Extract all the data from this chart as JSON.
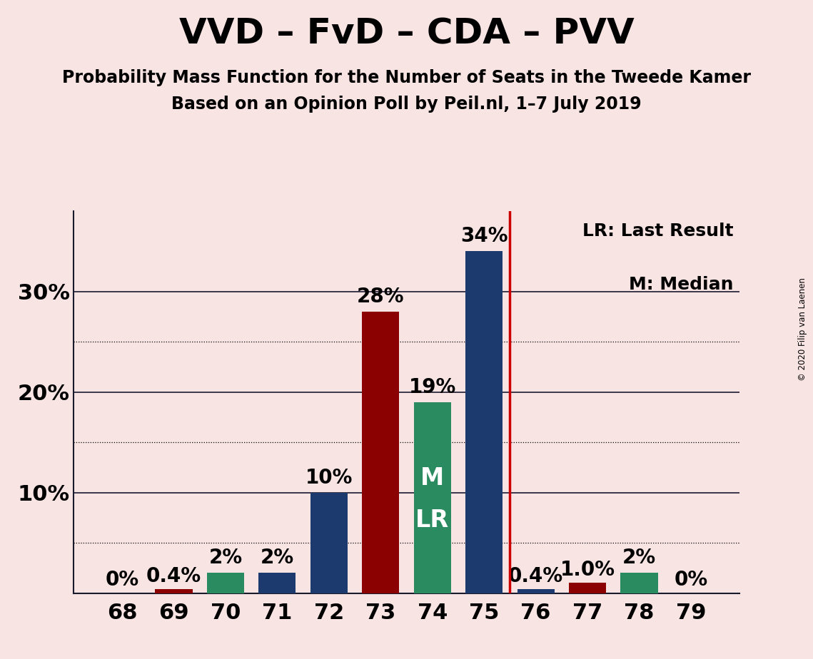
{
  "title": "VVD – FvD – CDA – PVV",
  "subtitle1": "Probability Mass Function for the Number of Seats in the Tweede Kamer",
  "subtitle2": "Based on an Opinion Poll by Peil.nl, 1–7 July 2019",
  "copyright": "© 2020 Filip van Laenen",
  "legend_lr": "LR: Last Result",
  "legend_m": "M: Median",
  "background_color": "#f9e4e4",
  "categories": [
    68,
    69,
    70,
    71,
    72,
    73,
    74,
    75,
    76,
    77,
    78,
    79
  ],
  "values": [
    0.0,
    0.4,
    2.0,
    2.0,
    10.0,
    28.0,
    19.0,
    34.0,
    0.4,
    1.0,
    2.0,
    0.0
  ],
  "labels": [
    "0%",
    "0.4%",
    "2%",
    "2%",
    "10%",
    "28%",
    "19%",
    "34%",
    "0.4%",
    "1.0%",
    "2%",
    "0%"
  ],
  "bar_colors": [
    "#8b0000",
    "#8b0000",
    "#2a8b60",
    "#1c3a6e",
    "#1c3a6e",
    "#8b0000",
    "#2a8b60",
    "#1c3a6e",
    "#1c3a6e",
    "#8b0000",
    "#2a8b60",
    "#2a8b60"
  ],
  "vline_x": 75.5,
  "vline_color": "#cc0000",
  "median_bar": 74,
  "lr_bar": 74,
  "median_label": "M",
  "lr_label": "LR",
  "ylim": [
    0,
    38
  ],
  "solid_yticks": [
    10,
    20,
    30
  ],
  "dotted_yticks": [
    5,
    15,
    25
  ],
  "ytick_labels_solid": [
    "10%",
    "20%",
    "30%"
  ],
  "title_fontsize": 36,
  "subtitle_fontsize": 17,
  "ytick_fontsize": 22,
  "xtick_fontsize": 22,
  "bar_label_fontsize": 20,
  "legend_fontsize": 18,
  "bar_width": 0.72,
  "line_color": "#1a1a2e"
}
